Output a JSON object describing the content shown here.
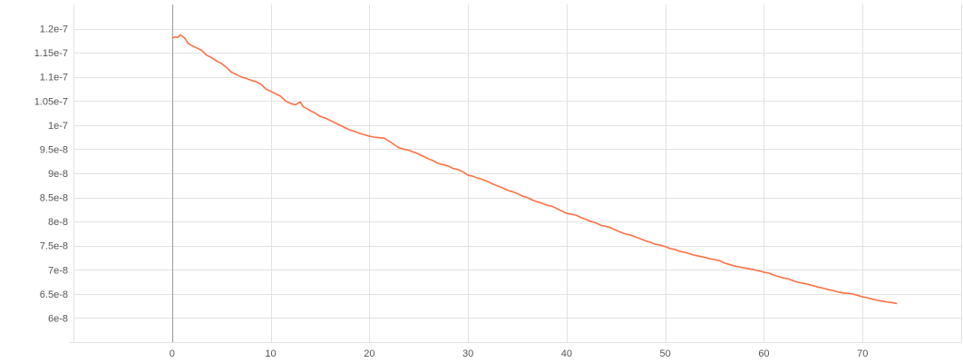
{
  "chart_data": {
    "type": "line",
    "title": "",
    "xlabel": "",
    "ylabel": "",
    "xlim": [
      -10,
      80
    ],
    "ylim": [
      5.5e-08,
      1.25e-07
    ],
    "grid": true,
    "x_ticks": [
      {
        "value": 0,
        "label": "0"
      },
      {
        "value": 10,
        "label": "10"
      },
      {
        "value": 20,
        "label": "20"
      },
      {
        "value": 30,
        "label": "30"
      },
      {
        "value": 40,
        "label": "40"
      },
      {
        "value": 50,
        "label": "50"
      },
      {
        "value": 60,
        "label": "60"
      },
      {
        "value": 70,
        "label": "70"
      }
    ],
    "y_ticks": [
      {
        "value": 6e-08,
        "label": "6e-8"
      },
      {
        "value": 6.5e-08,
        "label": "6.5e-8"
      },
      {
        "value": 7e-08,
        "label": "7e-8"
      },
      {
        "value": 7.5e-08,
        "label": "7.5e-8"
      },
      {
        "value": 8e-08,
        "label": "8e-8"
      },
      {
        "value": 8.5e-08,
        "label": "8.5e-8"
      },
      {
        "value": 9e-08,
        "label": "9e-8"
      },
      {
        "value": 9.5e-08,
        "label": "9.5e-8"
      },
      {
        "value": 1e-07,
        "label": "1e-7"
      },
      {
        "value": 1.05e-07,
        "label": "1.05e-7"
      },
      {
        "value": 1.1e-07,
        "label": "1.1e-7"
      },
      {
        "value": 1.15e-07,
        "label": "1.15e-7"
      },
      {
        "value": 1.2e-07,
        "label": "1.2e-7"
      }
    ],
    "series": [
      {
        "color": "#ff7043",
        "points": [
          [
            0,
            1.18e-07
          ],
          [
            0.3,
            1.183e-07
          ],
          [
            0.6,
            1.182e-07
          ],
          [
            0.8,
            1.187e-07
          ],
          [
            1.0,
            1.185e-07
          ],
          [
            1.3,
            1.18e-07
          ],
          [
            1.6,
            1.17e-07
          ],
          [
            2.0,
            1.165e-07
          ],
          [
            2.5,
            1.16e-07
          ],
          [
            3.0,
            1.155e-07
          ],
          [
            3.5,
            1.145e-07
          ],
          [
            4.0,
            1.14e-07
          ],
          [
            4.5,
            1.133e-07
          ],
          [
            5.0,
            1.128e-07
          ],
          [
            5.5,
            1.12e-07
          ],
          [
            6.0,
            1.11e-07
          ],
          [
            6.5,
            1.105e-07
          ],
          [
            7.0,
            1.1e-07
          ],
          [
            7.5,
            1.097e-07
          ],
          [
            8.0,
            1.093e-07
          ],
          [
            8.5,
            1.09e-07
          ],
          [
            9.0,
            1.085e-07
          ],
          [
            9.5,
            1.075e-07
          ],
          [
            10.0,
            1.07e-07
          ],
          [
            10.5,
            1.065e-07
          ],
          [
            11.0,
            1.06e-07
          ],
          [
            11.5,
            1.05e-07
          ],
          [
            12.0,
            1.045e-07
          ],
          [
            12.5,
            1.042e-07
          ],
          [
            13.0,
            1.048e-07
          ],
          [
            13.3,
            1.038e-07
          ],
          [
            13.7,
            1.034e-07
          ],
          [
            14.0,
            1.03e-07
          ],
          [
            14.5,
            1.025e-07
          ],
          [
            15.0,
            1.018e-07
          ],
          [
            15.5,
            1.015e-07
          ],
          [
            16.0,
            1.01e-07
          ],
          [
            16.5,
            1.005e-07
          ],
          [
            17.0,
            1e-07
          ],
          [
            17.5,
            9.95e-08
          ],
          [
            18.0,
            9.9e-08
          ],
          [
            18.5,
            9.87e-08
          ],
          [
            19.0,
            9.83e-08
          ],
          [
            19.5,
            9.8e-08
          ],
          [
            20.0,
            9.77e-08
          ],
          [
            20.5,
            9.75e-08
          ],
          [
            21.0,
            9.74e-08
          ],
          [
            21.5,
            9.73e-08
          ],
          [
            22.0,
            9.67e-08
          ],
          [
            22.5,
            9.6e-08
          ],
          [
            23.0,
            9.53e-08
          ],
          [
            23.5,
            9.5e-08
          ],
          [
            24.0,
            9.48e-08
          ],
          [
            24.5,
            9.44e-08
          ],
          [
            25.0,
            9.4e-08
          ],
          [
            25.5,
            9.35e-08
          ],
          [
            26.0,
            9.3e-08
          ],
          [
            26.5,
            9.26e-08
          ],
          [
            27.0,
            9.2e-08
          ],
          [
            27.5,
            9.18e-08
          ],
          [
            28.0,
            9.15e-08
          ],
          [
            28.5,
            9.1e-08
          ],
          [
            29.0,
            9.08e-08
          ],
          [
            29.5,
            9.03e-08
          ],
          [
            30.0,
            8.96e-08
          ],
          [
            30.5,
            8.94e-08
          ],
          [
            31.0,
            8.9e-08
          ],
          [
            31.5,
            8.87e-08
          ],
          [
            32.0,
            8.83e-08
          ],
          [
            32.5,
            8.78e-08
          ],
          [
            33.0,
            8.74e-08
          ],
          [
            33.5,
            8.7e-08
          ],
          [
            34.0,
            8.65e-08
          ],
          [
            34.5,
            8.62e-08
          ],
          [
            35.0,
            8.58e-08
          ],
          [
            35.5,
            8.53e-08
          ],
          [
            36.0,
            8.5e-08
          ],
          [
            36.5,
            8.45e-08
          ],
          [
            37.0,
            8.41e-08
          ],
          [
            37.5,
            8.38e-08
          ],
          [
            38.0,
            8.34e-08
          ],
          [
            38.5,
            8.32e-08
          ],
          [
            39.0,
            8.27e-08
          ],
          [
            39.5,
            8.22e-08
          ],
          [
            40.0,
            8.17e-08
          ],
          [
            40.5,
            8.15e-08
          ],
          [
            41.0,
            8.13e-08
          ],
          [
            41.5,
            8.08e-08
          ],
          [
            42.0,
            8.04e-08
          ],
          [
            42.5,
            8e-08
          ],
          [
            43.0,
            7.97e-08
          ],
          [
            43.5,
            7.92e-08
          ],
          [
            44.0,
            7.9e-08
          ],
          [
            44.5,
            7.87e-08
          ],
          [
            45.0,
            7.82e-08
          ],
          [
            45.5,
            7.78e-08
          ],
          [
            46.0,
            7.74e-08
          ],
          [
            46.5,
            7.72e-08
          ],
          [
            47.0,
            7.68e-08
          ],
          [
            47.5,
            7.64e-08
          ],
          [
            48.0,
            7.6e-08
          ],
          [
            48.5,
            7.57e-08
          ],
          [
            49.0,
            7.53e-08
          ],
          [
            49.5,
            7.51e-08
          ],
          [
            50.0,
            7.48e-08
          ],
          [
            50.5,
            7.44e-08
          ],
          [
            51.0,
            7.42e-08
          ],
          [
            51.5,
            7.38e-08
          ],
          [
            52.0,
            7.36e-08
          ],
          [
            52.5,
            7.33e-08
          ],
          [
            53.0,
            7.3e-08
          ],
          [
            53.5,
            7.28e-08
          ],
          [
            54.0,
            7.26e-08
          ],
          [
            54.5,
            7.23e-08
          ],
          [
            55.0,
            7.21e-08
          ],
          [
            55.5,
            7.19e-08
          ],
          [
            56.0,
            7.14e-08
          ],
          [
            56.5,
            7.11e-08
          ],
          [
            57.0,
            7.08e-08
          ],
          [
            57.5,
            7.06e-08
          ],
          [
            58.0,
            7.04e-08
          ],
          [
            58.5,
            7.02e-08
          ],
          [
            59.0,
            7e-08
          ],
          [
            59.5,
            6.98e-08
          ],
          [
            60.0,
            6.95e-08
          ],
          [
            60.5,
            6.93e-08
          ],
          [
            61.0,
            6.89e-08
          ],
          [
            61.5,
            6.86e-08
          ],
          [
            62.0,
            6.83e-08
          ],
          [
            62.5,
            6.81e-08
          ],
          [
            63.0,
            6.77e-08
          ],
          [
            63.5,
            6.74e-08
          ],
          [
            64.0,
            6.72e-08
          ],
          [
            64.5,
            6.7e-08
          ],
          [
            65.0,
            6.67e-08
          ],
          [
            65.5,
            6.64e-08
          ],
          [
            66.0,
            6.62e-08
          ],
          [
            66.5,
            6.59e-08
          ],
          [
            67.0,
            6.57e-08
          ],
          [
            67.5,
            6.54e-08
          ],
          [
            68.0,
            6.52e-08
          ],
          [
            68.5,
            6.51e-08
          ],
          [
            69.0,
            6.5e-08
          ],
          [
            69.5,
            6.47e-08
          ],
          [
            70.0,
            6.44e-08
          ],
          [
            70.5,
            6.42e-08
          ],
          [
            71.0,
            6.39e-08
          ],
          [
            71.5,
            6.37e-08
          ],
          [
            72.0,
            6.35e-08
          ],
          [
            72.5,
            6.33e-08
          ],
          [
            73.0,
            6.32e-08
          ],
          [
            73.5,
            6.3e-08
          ]
        ]
      }
    ]
  }
}
